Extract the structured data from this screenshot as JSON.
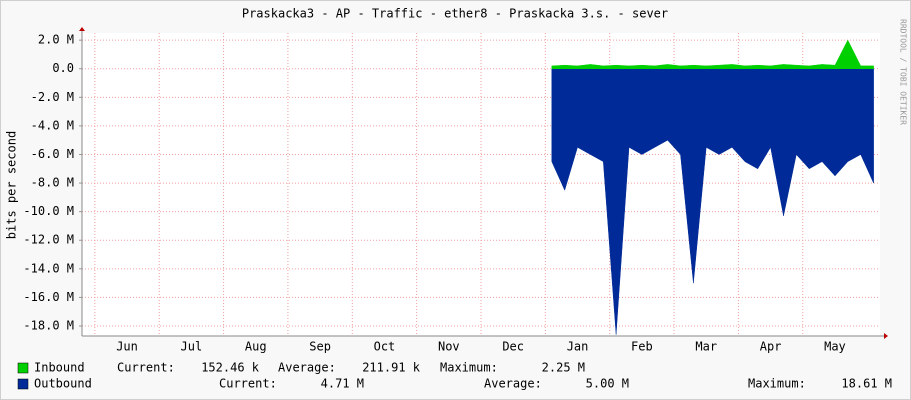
{
  "chart_data": {
    "type": "area",
    "title": "Praskacka3 - AP - Traffic - ether8 - Praskacka 3.s. - sever",
    "y_label": "bits per second",
    "side_text": "RRDTOOL / TOBI OETIKER",
    "categories": [
      null,
      null,
      null,
      "Jun",
      null,
      null,
      null,
      null,
      "Jul",
      null,
      null,
      null,
      null,
      "Aug",
      null,
      null,
      null,
      null,
      "Sep",
      null,
      null,
      null,
      null,
      "Oct",
      null,
      null,
      null,
      null,
      "Nov",
      null,
      null,
      null,
      null,
      "Dec",
      null,
      null,
      null,
      null,
      "Jan",
      null,
      null,
      null,
      null,
      "Feb",
      null,
      null,
      null,
      null,
      "Mar",
      null,
      null,
      null,
      null,
      "Apr",
      null,
      null,
      null,
      null,
      "May",
      null,
      null,
      null
    ],
    "series": [
      {
        "name": "Outbound",
        "color": "#002a97",
        "values": [
          null,
          null,
          null,
          null,
          null,
          null,
          null,
          null,
          null,
          null,
          null,
          null,
          null,
          null,
          null,
          null,
          null,
          null,
          null,
          null,
          null,
          null,
          null,
          null,
          null,
          null,
          null,
          null,
          null,
          null,
          null,
          null,
          null,
          null,
          null,
          null,
          -6500000,
          -8500000,
          -5500000,
          -6000000,
          -6500000,
          -18600000,
          -5500000,
          -6000000,
          -5500000,
          -5000000,
          -6000000,
          -15000000,
          -5500000,
          -6000000,
          -5500000,
          -6500000,
          -7000000,
          -5500000,
          -10300000,
          -6000000,
          -7000000,
          -6500000,
          -7500000,
          -6500000,
          -6000000,
          -8000000
        ],
        "stats": [
          {
            "label": "Current:",
            "value": "4.71 M"
          },
          {
            "label": "Average:",
            "value": "5.00 M"
          },
          {
            "label": "Maximum:",
            "value": "18.61 M"
          }
        ]
      },
      {
        "name": "Inbound",
        "color": "#00cf00",
        "values": [
          null,
          null,
          null,
          null,
          null,
          null,
          null,
          null,
          null,
          null,
          null,
          null,
          null,
          null,
          null,
          null,
          null,
          null,
          null,
          null,
          null,
          null,
          null,
          null,
          null,
          null,
          null,
          null,
          null,
          null,
          null,
          null,
          null,
          null,
          null,
          null,
          200000,
          250000,
          200000,
          300000,
          200000,
          250000,
          200000,
          250000,
          200000,
          300000,
          200000,
          250000,
          200000,
          250000,
          300000,
          200000,
          250000,
          200000,
          300000,
          250000,
          200000,
          300000,
          250000,
          2000000,
          200000,
          200000
        ],
        "stats": [
          {
            "label": "Current:",
            "value": "152.46 k"
          },
          {
            "label": "Average:",
            "value": "211.91 k"
          },
          {
            "label": "Maximum:",
            "value": "2.25 M"
          }
        ]
      }
    ],
    "ylim": [
      -18700000,
      2500000
    ],
    "yticks": [
      {
        "value": 2000000,
        "label": "2.0 M"
      },
      {
        "value": 0,
        "label": "0.0"
      },
      {
        "value": -2000000,
        "label": "-2.0 M"
      },
      {
        "value": -4000000,
        "label": "-4.0 M"
      },
      {
        "value": -6000000,
        "label": "-6.0 M"
      },
      {
        "value": -8000000,
        "label": "-8.0 M"
      },
      {
        "value": -10000000,
        "label": "-10.0 M"
      },
      {
        "value": -12000000,
        "label": "-12.0 M"
      },
      {
        "value": -14000000,
        "label": "-14.0 M"
      },
      {
        "value": -16000000,
        "label": "-16.0 M"
      },
      {
        "value": -18000000,
        "label": "-18.0 M"
      }
    ],
    "grid": true
  }
}
